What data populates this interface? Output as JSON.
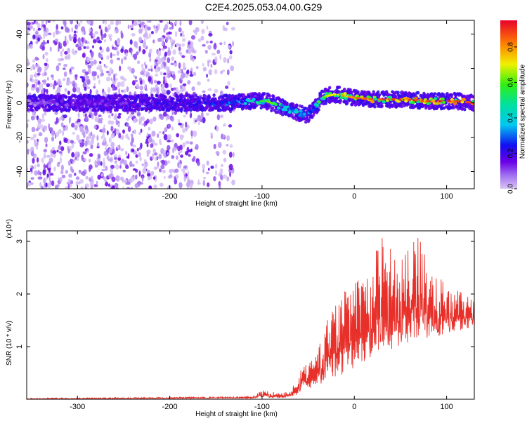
{
  "title": "C2E4.2025.053.04.00.G29",
  "chart_data": [
    {
      "type": "heatmap",
      "title": "C2E4.2025.053.04.00.G29",
      "xlabel": "Height of straight line (km)",
      "ylabel": "Frequency (Hz)",
      "xlim": [
        -355,
        130
      ],
      "ylim": [
        -50,
        48
      ],
      "x_ticks": [
        -300,
        -200,
        -100,
        0,
        100
      ],
      "y_ticks": [
        -40,
        -20,
        0,
        20,
        40
      ],
      "colorbar": {
        "label": "Normalized spectral amplitude",
        "range": [
          0,
          0.95
        ],
        "ticks": [
          0.0,
          0.2,
          0.4,
          0.6,
          0.8
        ]
      },
      "ridge_frequency": {
        "x": [
          -355,
          -300,
          -250,
          -200,
          -160,
          -130,
          -110,
          -95,
          -80,
          -70,
          -60,
          -50,
          -45,
          -40,
          -35,
          -30,
          -20,
          -10,
          0,
          20,
          50,
          80,
          110,
          130
        ],
        "y": [
          0,
          0,
          0,
          0,
          0,
          0,
          1,
          1,
          -2,
          -4,
          -6,
          -7,
          -4,
          -1,
          3,
          4,
          5,
          4,
          3,
          2,
          2,
          1,
          1,
          0
        ]
      },
      "ridge_amplitude": {
        "x": [
          -355,
          -300,
          -250,
          -200,
          -160,
          -130,
          -110,
          -95,
          -80,
          -70,
          -60,
          -50,
          -45,
          -40,
          -35,
          -30,
          -20,
          -10,
          0,
          20,
          50,
          80,
          110,
          130
        ],
        "y": [
          0.1,
          0.2,
          0.2,
          0.25,
          0.3,
          0.35,
          0.5,
          0.6,
          0.55,
          0.5,
          0.45,
          0.4,
          0.45,
          0.55,
          0.6,
          0.65,
          0.7,
          0.75,
          0.8,
          0.85,
          0.9,
          0.9,
          0.9,
          0.9
        ]
      },
      "noise_region_x": [
        -355,
        -130
      ]
    },
    {
      "type": "line",
      "xlabel": "Height of straight line (km)",
      "ylabel": "SNR (10 * v/v)",
      "y_multiplier": "(x10⁴)",
      "xlim": [
        -355,
        130
      ],
      "ylim": [
        0,
        3.2
      ],
      "x_ticks": [
        -300,
        -200,
        -100,
        0,
        100
      ],
      "y_ticks": [
        1,
        2,
        3
      ],
      "color": "#e8302a",
      "envelope": {
        "x": [
          -355,
          -110,
          -100,
          -80,
          -70,
          -60,
          -55,
          -50,
          -40,
          -30,
          -20,
          -10,
          0,
          10,
          20,
          30,
          40,
          50,
          60,
          70,
          80,
          90,
          100,
          110,
          120,
          130
        ],
        "low": [
          0.0,
          0.02,
          0.03,
          0.02,
          0.03,
          0.1,
          0.25,
          0.15,
          0.2,
          0.4,
          0.4,
          0.5,
          0.6,
          0.7,
          0.8,
          0.9,
          0.9,
          1.0,
          1.1,
          1.1,
          1.1,
          1.2,
          1.2,
          1.3,
          1.3,
          1.4
        ],
        "high": [
          0.02,
          0.05,
          0.18,
          0.12,
          0.15,
          0.45,
          0.72,
          0.65,
          1.05,
          1.5,
          1.8,
          2.1,
          2.3,
          2.4,
          2.7,
          3.1,
          3.0,
          2.6,
          2.9,
          3.15,
          2.5,
          2.4,
          2.2,
          2.1,
          2.0,
          2.0
        ]
      }
    }
  ]
}
